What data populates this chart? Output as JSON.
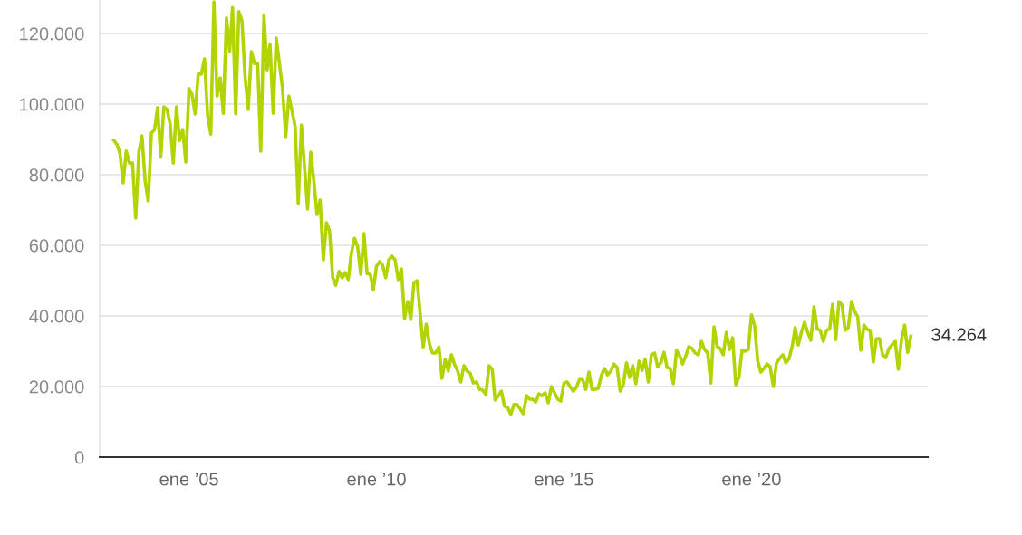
{
  "chart_data": {
    "type": "line",
    "xlim": [
      "2002-08-15",
      "2024-09-13"
    ],
    "xticks": [
      {
        "value": "2005-01",
        "label": "ene ’05"
      },
      {
        "value": "2010-01",
        "label": "ene ’10"
      },
      {
        "value": "2015-01",
        "label": "ene ’15"
      },
      {
        "value": "2020-01",
        "label": "ene ’20"
      }
    ],
    "ylim": [
      0,
      129500
    ],
    "yticks": [
      0,
      {
        "value": 20000,
        "label": "20.000"
      },
      {
        "value": 40000,
        "label": "40.000"
      },
      {
        "value": 60000,
        "label": "60.000"
      },
      {
        "value": 80000,
        "label": "80.000"
      },
      {
        "value": 100000,
        "label": "100.000"
      },
      {
        "value": 120000,
        "label": "120.000"
      }
    ],
    "grid": "y",
    "marker": "none",
    "line_style": "solid",
    "annotations": [
      {
        "text": "34.264",
        "x": "2024-04",
        "y": 34264
      }
    ],
    "series": [
      {
        "color": "#b2d404",
        "x": [
          "2003-01",
          "2003-02",
          "2003-03",
          "2003-04",
          "2003-05",
          "2003-06",
          "2003-07",
          "2003-08",
          "2003-09",
          "2003-10",
          "2003-11",
          "2003-12",
          "2004-01",
          "2004-02",
          "2004-03",
          "2004-04",
          "2004-05",
          "2004-06",
          "2004-07",
          "2004-08",
          "2004-09",
          "2004-10",
          "2004-11",
          "2004-12",
          "2005-01",
          "2005-02",
          "2005-03",
          "2005-04",
          "2005-05",
          "2005-06",
          "2005-07",
          "2005-08",
          "2005-09",
          "2005-10",
          "2005-11",
          "2005-12",
          "2006-01",
          "2006-02",
          "2006-03",
          "2006-04",
          "2006-05",
          "2006-06",
          "2006-07",
          "2006-08",
          "2006-09",
          "2006-10",
          "2006-11",
          "2006-12",
          "2007-01",
          "2007-02",
          "2007-03",
          "2007-04",
          "2007-05",
          "2007-06",
          "2007-07",
          "2007-08",
          "2007-09",
          "2007-10",
          "2007-11",
          "2007-12",
          "2008-01",
          "2008-03",
          "2008-04",
          "2008-05",
          "2008-06",
          "2008-07",
          "2008-08",
          "2008-09",
          "2008-10",
          "2008-11",
          "2008-12",
          "2009-01",
          "2009-02",
          "2009-03",
          "2009-04",
          "2009-05",
          "2009-06",
          "2009-07",
          "2009-08",
          "2009-09",
          "2009-10",
          "2009-11",
          "2009-12",
          "2010-01",
          "2010-02",
          "2010-03",
          "2010-04",
          "2010-05",
          "2010-06",
          "2010-07",
          "2010-08",
          "2010-09",
          "2010-10",
          "2010-11",
          "2010-12",
          "2011-01",
          "2011-02",
          "2011-04",
          "2011-05",
          "2011-06",
          "2011-07",
          "2011-08",
          "2011-09",
          "2011-10",
          "2011-11",
          "2011-12",
          "2012-01",
          "2012-02",
          "2012-03",
          "2012-04",
          "2012-05",
          "2012-06",
          "2012-07",
          "2012-08",
          "2012-09",
          "2012-10",
          "2012-11",
          "2012-12",
          "2013-01",
          "2013-02",
          "2013-03",
          "2013-04",
          "2013-05",
          "2013-06",
          "2013-07",
          "2013-08",
          "2013-09",
          "2013-10",
          "2013-11",
          "2013-12",
          "2014-01",
          "2014-02",
          "2014-03",
          "2014-04",
          "2014-05",
          "2014-06",
          "2014-07",
          "2014-08",
          "2014-09",
          "2014-10",
          "2014-11",
          "2014-12",
          "2015-01",
          "2015-02",
          "2015-03",
          "2015-04",
          "2015-05",
          "2015-06",
          "2015-07",
          "2015-08",
          "2015-09",
          "2015-10",
          "2015-11",
          "2015-12",
          "2016-01",
          "2016-02",
          "2016-03",
          "2016-04",
          "2016-05",
          "2016-06",
          "2016-07",
          "2016-08",
          "2016-09",
          "2016-10",
          "2016-11",
          "2016-12",
          "2017-01",
          "2017-02",
          "2017-03",
          "2017-04",
          "2017-05",
          "2017-06",
          "2017-07",
          "2017-08",
          "2017-09",
          "2017-10",
          "2017-11",
          "2017-12",
          "2018-01",
          "2018-02",
          "2018-03",
          "2018-04",
          "2018-05",
          "2018-06",
          "2018-07",
          "2018-08",
          "2018-09",
          "2018-10",
          "2018-11",
          "2018-12",
          "2019-01",
          "2019-02",
          "2019-03",
          "2019-04",
          "2019-05",
          "2019-06",
          "2019-07",
          "2019-08",
          "2019-09",
          "2019-10",
          "2019-11",
          "2019-12",
          "2020-01",
          "2020-02",
          "2020-03",
          "2020-04",
          "2020-05",
          "2020-06",
          "2020-07",
          "2020-08",
          "2020-09",
          "2020-10",
          "2020-11",
          "2020-12",
          "2021-01",
          "2021-02",
          "2021-03",
          "2021-04",
          "2021-05",
          "2021-06",
          "2021-07",
          "2021-08",
          "2021-09",
          "2021-10",
          "2021-11",
          "2021-12",
          "2022-01",
          "2022-02",
          "2022-03",
          "2022-04",
          "2022-05",
          "2022-06",
          "2022-07",
          "2022-08",
          "2022-09",
          "2022-10",
          "2022-11",
          "2022-12",
          "2023-01",
          "2023-02",
          "2023-03",
          "2023-04",
          "2023-05",
          "2023-06",
          "2023-07",
          "2023-08",
          "2023-09",
          "2023-10",
          "2023-11",
          "2023-12",
          "2024-01",
          "2024-02",
          "2024-03",
          "2024-04"
        ],
        "values": [
          89700,
          88500,
          86000,
          77700,
          86700,
          83300,
          83300,
          67700,
          86400,
          91000,
          78200,
          72600,
          91800,
          92800,
          99000,
          85000,
          99200,
          98500,
          94400,
          83300,
          99200,
          89700,
          92800,
          83600,
          104400,
          102600,
          97200,
          108500,
          108500,
          112800,
          96900,
          91500,
          129000,
          102300,
          107400,
          97400,
          124400,
          114900,
          127400,
          97200,
          126200,
          123600,
          107700,
          98500,
          114900,
          111500,
          111500,
          86700,
          125100,
          109700,
          116900,
          97400,
          118700,
          111500,
          104400,
          90800,
          102300,
          98200,
          93600,
          71800,
          94100,
          70300,
          86400,
          78200,
          68700,
          72800,
          55900,
          66400,
          64100,
          50800,
          48700,
          52600,
          50800,
          52300,
          50300,
          57700,
          62000,
          59700,
          51800,
          63300,
          52000,
          51800,
          47400,
          54100,
          55400,
          54400,
          50800,
          55900,
          56900,
          55900,
          50300,
          53300,
          39200,
          44100,
          39000,
          49500,
          50000,
          31200,
          37700,
          32000,
          29500,
          29500,
          31200,
          22300,
          27700,
          24400,
          29000,
          26200,
          24400,
          21300,
          25900,
          24400,
          23800,
          21000,
          21300,
          19200,
          19000,
          17700,
          25900,
          24900,
          16200,
          17400,
          18700,
          14400,
          14100,
          12100,
          14900,
          14900,
          13600,
          12300,
          17400,
          16400,
          16400,
          15600,
          17900,
          17400,
          18200,
          15400,
          20000,
          18200,
          16400,
          15900,
          21000,
          21300,
          20000,
          18700,
          19700,
          22000,
          22000,
          19200,
          24100,
          19200,
          19200,
          19500,
          23300,
          25100,
          23300,
          24400,
          26400,
          25400,
          18700,
          20500,
          26700,
          22600,
          25900,
          20800,
          27200,
          24600,
          27700,
          21300,
          29000,
          29500,
          25600,
          26700,
          29700,
          25400,
          25100,
          20800,
          30300,
          28700,
          26400,
          28700,
          31300,
          30800,
          29500,
          29000,
          32800,
          30500,
          29500,
          21000,
          36900,
          31300,
          30800,
          29000,
          35400,
          30500,
          33800,
          20500,
          22600,
          30300,
          30000,
          30500,
          40300,
          37200,
          27400,
          24100,
          25100,
          26400,
          25600,
          20000,
          26700,
          27900,
          29000,
          26700,
          27900,
          31500,
          36700,
          31800,
          35400,
          38200,
          35400,
          33100,
          42600,
          36400,
          35900,
          32800,
          35900,
          36400,
          43300,
          33300,
          44100,
          43100,
          35900,
          36700,
          44100,
          41300,
          39700,
          30300,
          37400,
          36200,
          35900,
          26900,
          33600,
          33600,
          29000,
          28200,
          30800,
          31800,
          32800,
          24900,
          33300,
          37400,
          29700,
          34264
        ]
      }
    ]
  }
}
